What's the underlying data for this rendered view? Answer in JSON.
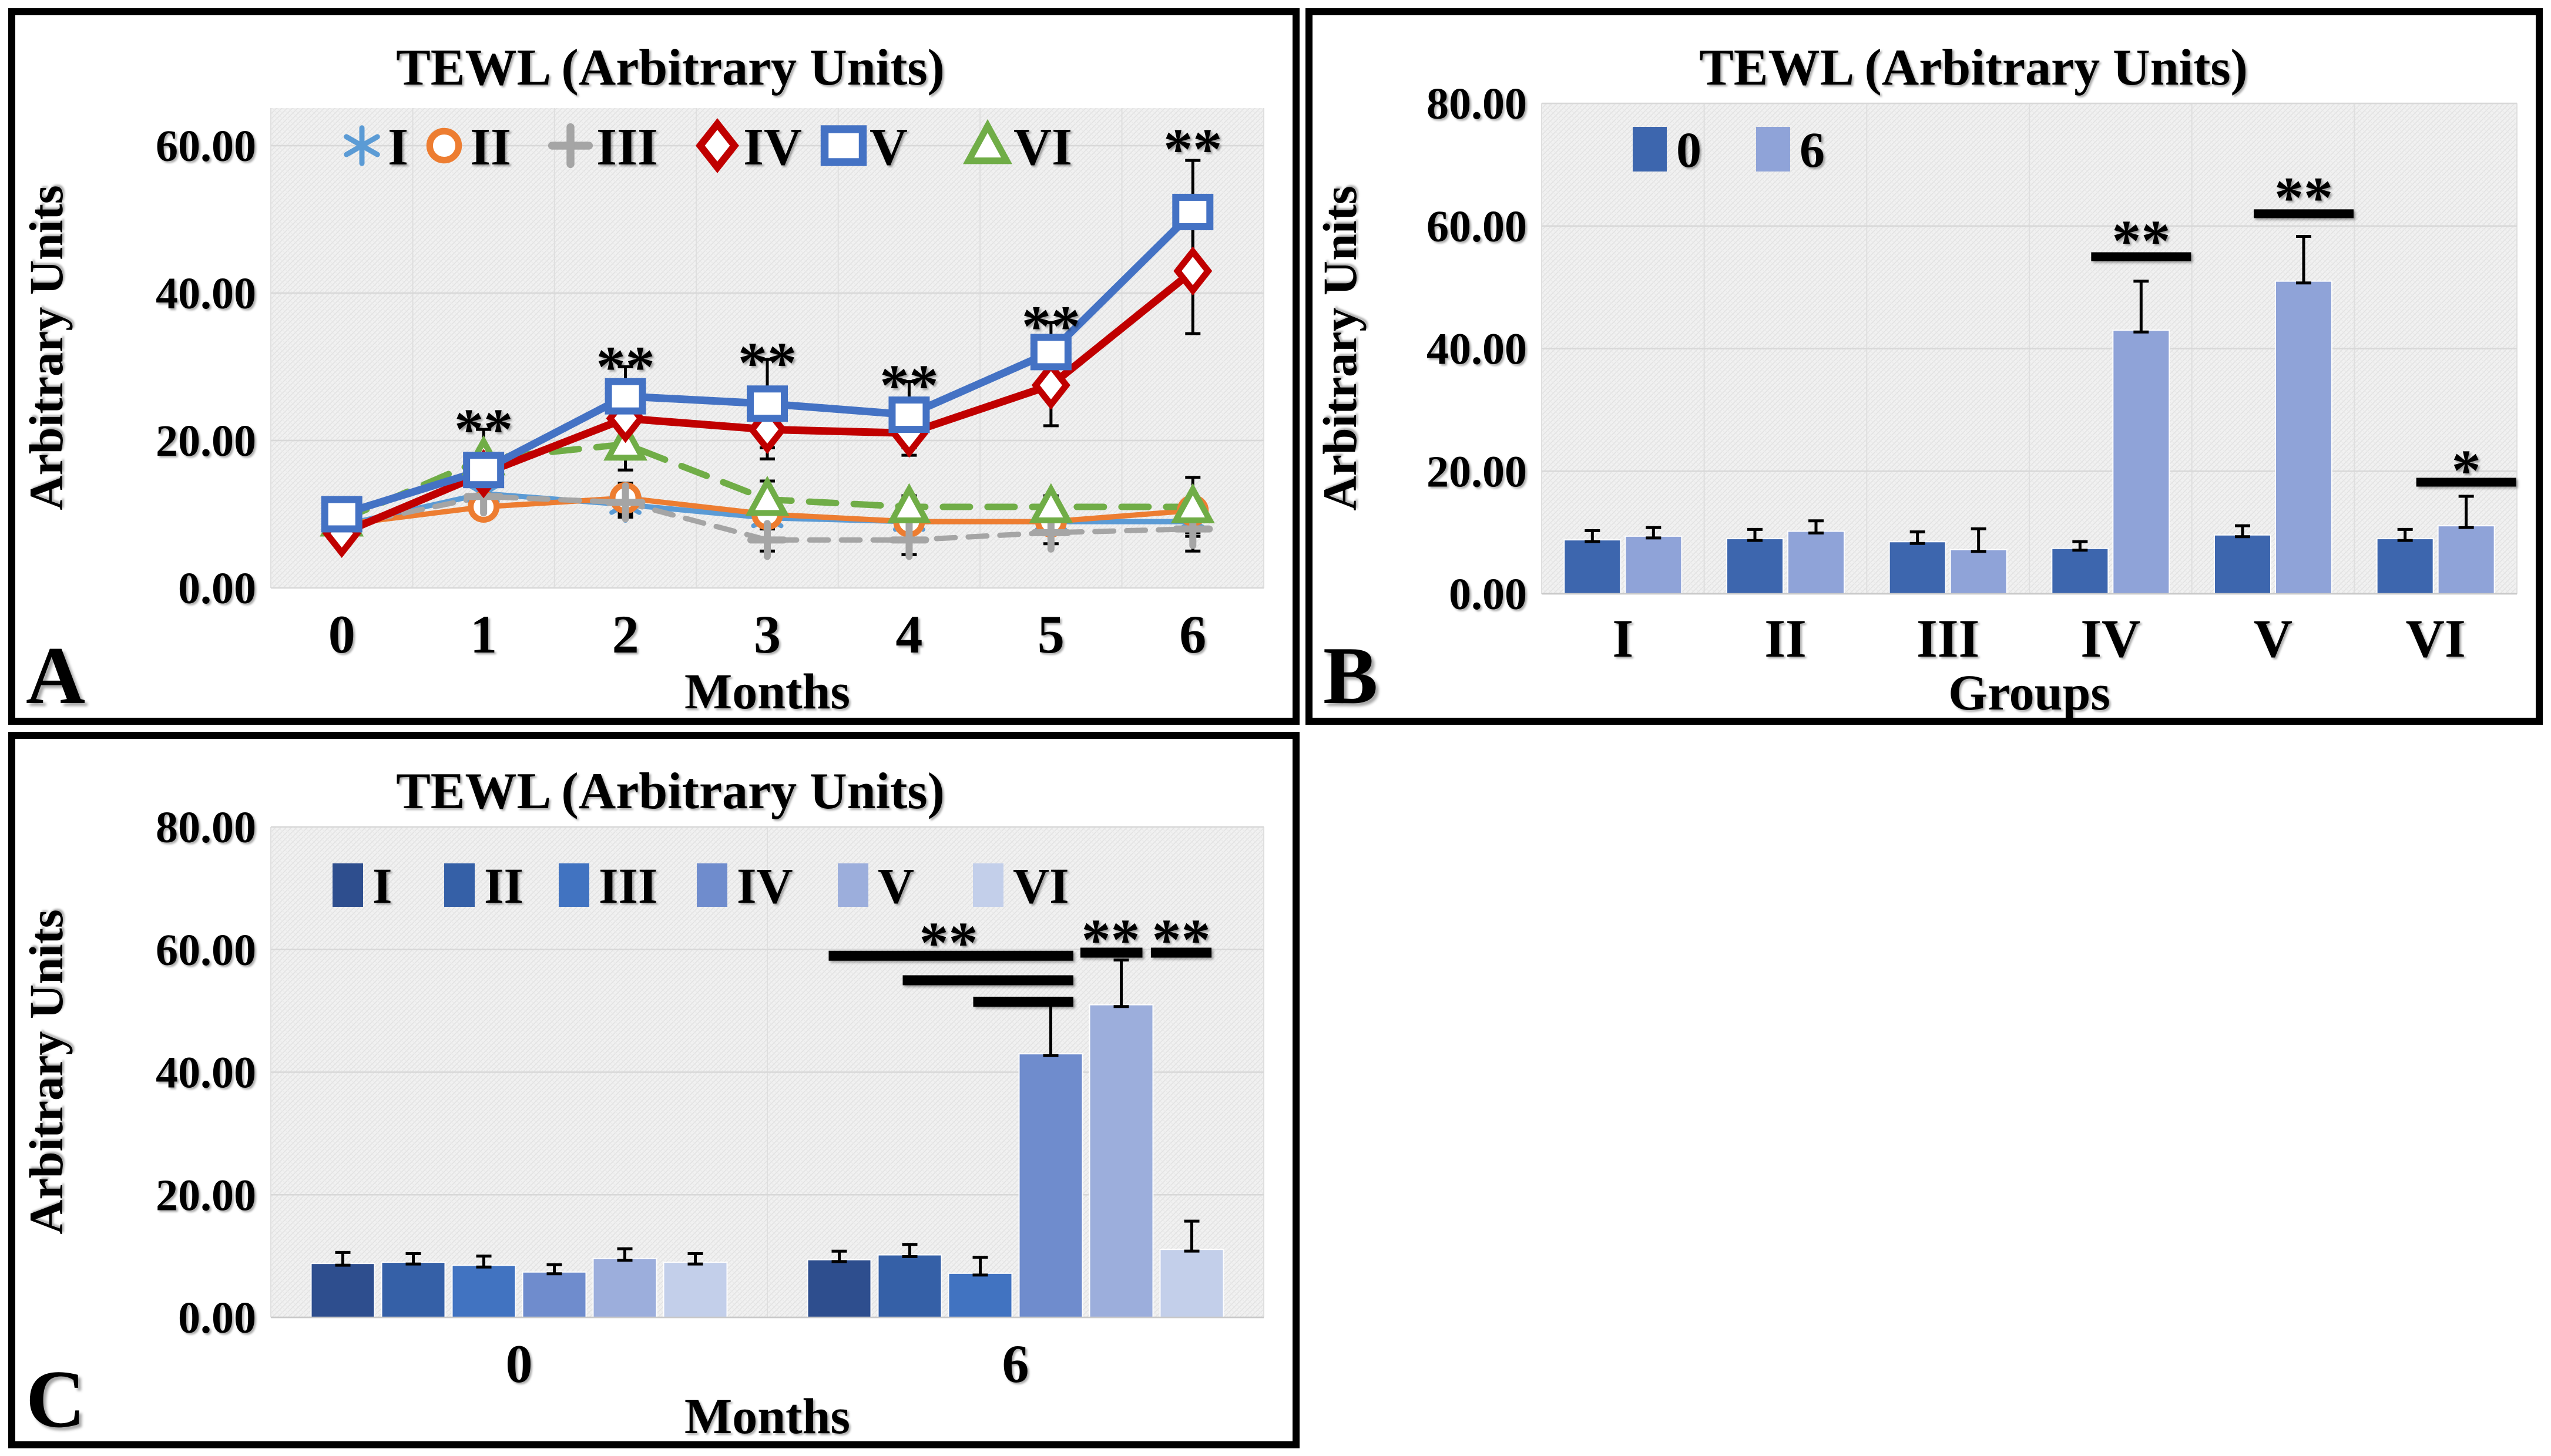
{
  "figure": {
    "background": "#ffffff",
    "panel_border_color": "#000000",
    "plot_background": "#F1F1F1",
    "gridline_color": "#D8D8D8"
  },
  "chart_data": [
    {
      "id": "A",
      "panel_letter": "A",
      "type": "line",
      "title": "TEWL (Arbitrary Units)",
      "xlabel": "Months",
      "ylabel": "Arbitrary Units",
      "x": [
        0,
        1,
        2,
        3,
        4,
        5,
        6
      ],
      "xtick_labels": [
        "0",
        "1",
        "2",
        "3",
        "4",
        "5",
        "6"
      ],
      "ylim": [
        0,
        65
      ],
      "yticks": [
        0,
        20,
        40,
        60
      ],
      "ytick_labels": [
        "0.00",
        "20.00",
        "40.00",
        "60.00"
      ],
      "grid": true,
      "legend_position": "top-inside",
      "series": [
        {
          "name": "I",
          "color": "#5B9BD5",
          "marker": "asterisk",
          "dash": "",
          "width": 9,
          "values": [
            8.5,
            12.8,
            11.3,
            9.5,
            9.0,
            9.0,
            9.0
          ],
          "err": [
            1.0,
            1.5,
            1.5,
            1.0,
            1.0,
            1.0,
            1.5
          ]
        },
        {
          "name": "II",
          "color": "#ED7D31",
          "marker": "circle",
          "dash": "",
          "width": 9,
          "values": [
            8.6,
            11.0,
            12.2,
            10.0,
            9.0,
            9.0,
            10.5
          ],
          "err": [
            1.0,
            1.5,
            2.0,
            1.5,
            1.0,
            1.0,
            1.5
          ]
        },
        {
          "name": "III",
          "color": "#A5A5A5",
          "marker": "plus",
          "dash": "32 22",
          "width": 9,
          "values": [
            8.4,
            12.4,
            11.6,
            6.5,
            6.5,
            7.5,
            8.0
          ],
          "err": [
            1.0,
            1.5,
            2.0,
            1.5,
            2.0,
            1.5,
            3.0
          ]
        },
        {
          "name": "IV",
          "color": "#C00000",
          "marker": "diamond",
          "dash": "",
          "width": 13,
          "values": [
            7.4,
            15.5,
            23.0,
            21.5,
            21.0,
            27.5,
            43.0
          ],
          "err": [
            1.2,
            2.0,
            3.5,
            4.0,
            3.0,
            5.5,
            8.5
          ]
        },
        {
          "name": "V",
          "color": "#4472C4",
          "marker": "square",
          "dash": "",
          "width": 13,
          "values": [
            10.0,
            16.0,
            26.0,
            25.0,
            23.5,
            32.0,
            51.0
          ],
          "err": [
            1.5,
            2.5,
            4.0,
            6.0,
            4.5,
            4.0,
            7.0
          ]
        },
        {
          "name": "VI",
          "color": "#70AD47",
          "marker": "triangle",
          "dash": "46 30",
          "width": 11,
          "values": [
            9.2,
            17.5,
            19.5,
            12.0,
            11.0,
            11.0,
            11.0
          ],
          "err": [
            1.2,
            4.0,
            3.5,
            2.5,
            1.5,
            1.5,
            4.0
          ]
        }
      ],
      "significance": [
        {
          "x": 1,
          "y": 23.5,
          "label": "**"
        },
        {
          "x": 2,
          "y": 32.0,
          "label": "**"
        },
        {
          "x": 3,
          "y": 32.5,
          "label": "**"
        },
        {
          "x": 4,
          "y": 29.5,
          "label": "**"
        },
        {
          "x": 5,
          "y": 37.5,
          "label": "**"
        },
        {
          "x": 6,
          "y": 61.5,
          "label": "**"
        }
      ]
    },
    {
      "id": "B",
      "panel_letter": "B",
      "type": "bar",
      "title": "TEWL (Arbitrary Units)",
      "xlabel": "Groups",
      "ylabel": "Arbitrary Units",
      "categories": [
        "I",
        "II",
        "III",
        "IV",
        "V",
        "VI"
      ],
      "ylim": [
        0,
        80
      ],
      "yticks": [
        0,
        20,
        40,
        60,
        80
      ],
      "ytick_labels": [
        "0.00",
        "20.00",
        "40.00",
        "60.00",
        "80.00"
      ],
      "grid": true,
      "legend_position": "top-inside",
      "series": [
        {
          "name": "0",
          "color": "#3D66AE",
          "values": [
            8.8,
            9.0,
            8.5,
            7.4,
            9.6,
            9.0
          ],
          "err": [
            1.5,
            1.5,
            1.6,
            1.1,
            1.5,
            1.5
          ]
        },
        {
          "name": "6",
          "color": "#8FA3D8",
          "values": [
            9.4,
            10.2,
            7.2,
            43.0,
            51.0,
            11.1
          ],
          "err": [
            1.4,
            1.7,
            3.4,
            8.0,
            7.3,
            4.8
          ]
        }
      ],
      "significance": [
        {
          "group": 3,
          "label": "**",
          "line_y": 55,
          "star_y": 60.0
        },
        {
          "group": 4,
          "label": "**",
          "line_y": 62,
          "star_y": 67.0
        },
        {
          "group": 5,
          "label": "*",
          "line_y": 18.2,
          "star_y": 22.5
        }
      ]
    },
    {
      "id": "C",
      "panel_letter": "C",
      "type": "bar",
      "title": "TEWL (Arbitrary Units)",
      "xlabel": "Months",
      "ylabel": "Arbitrary Units",
      "categories": [
        "0",
        "6"
      ],
      "ylim": [
        0,
        80
      ],
      "yticks": [
        0,
        20,
        40,
        60,
        80
      ],
      "ytick_labels": [
        "0.00",
        "20.00",
        "40.00",
        "60.00",
        "80.00"
      ],
      "grid": true,
      "legend_position": "top-inside",
      "series": [
        {
          "name": "I",
          "color": "#2E4E8E",
          "values": [
            8.8,
            9.4
          ],
          "err": [
            1.8,
            1.4
          ]
        },
        {
          "name": "II",
          "color": "#3560A7",
          "values": [
            9.0,
            10.2
          ],
          "err": [
            1.4,
            1.7
          ]
        },
        {
          "name": "III",
          "color": "#4173C1",
          "values": [
            8.5,
            7.2
          ],
          "err": [
            1.5,
            2.6
          ]
        },
        {
          "name": "IV",
          "color": "#6F8CCD",
          "values": [
            7.4,
            43.0
          ],
          "err": [
            1.2,
            8.0
          ]
        },
        {
          "name": "V",
          "color": "#9CAEDC",
          "values": [
            9.6,
            51.0
          ],
          "err": [
            1.6,
            7.3
          ]
        },
        {
          "name": "VI",
          "color": "#C3CFEA",
          "values": [
            9.0,
            11.1
          ],
          "err": [
            1.4,
            4.6
          ]
        }
      ],
      "brackets": [
        {
          "cat": 1,
          "x1": -0.15,
          "x2": 3.32,
          "y": 59.0
        },
        {
          "cat": 1,
          "x1": 0.9,
          "x2": 3.32,
          "y": 55.0
        },
        {
          "cat": 1,
          "x1": 1.9,
          "x2": 3.32,
          "y": 51.5
        },
        {
          "cat": 1,
          "x1": 3.42,
          "x2": 4.3,
          "y": 59.5
        },
        {
          "cat": 1,
          "x1": 4.42,
          "x2": 5.28,
          "y": 59.5
        }
      ],
      "significance": [
        {
          "cat": 1,
          "pos": 1.55,
          "star_y": 63.5,
          "label": "**"
        },
        {
          "cat": 1,
          "pos": 3.85,
          "star_y": 64.0,
          "label": "**"
        },
        {
          "cat": 1,
          "pos": 4.85,
          "star_y": 64.0,
          "label": "**"
        }
      ]
    }
  ]
}
